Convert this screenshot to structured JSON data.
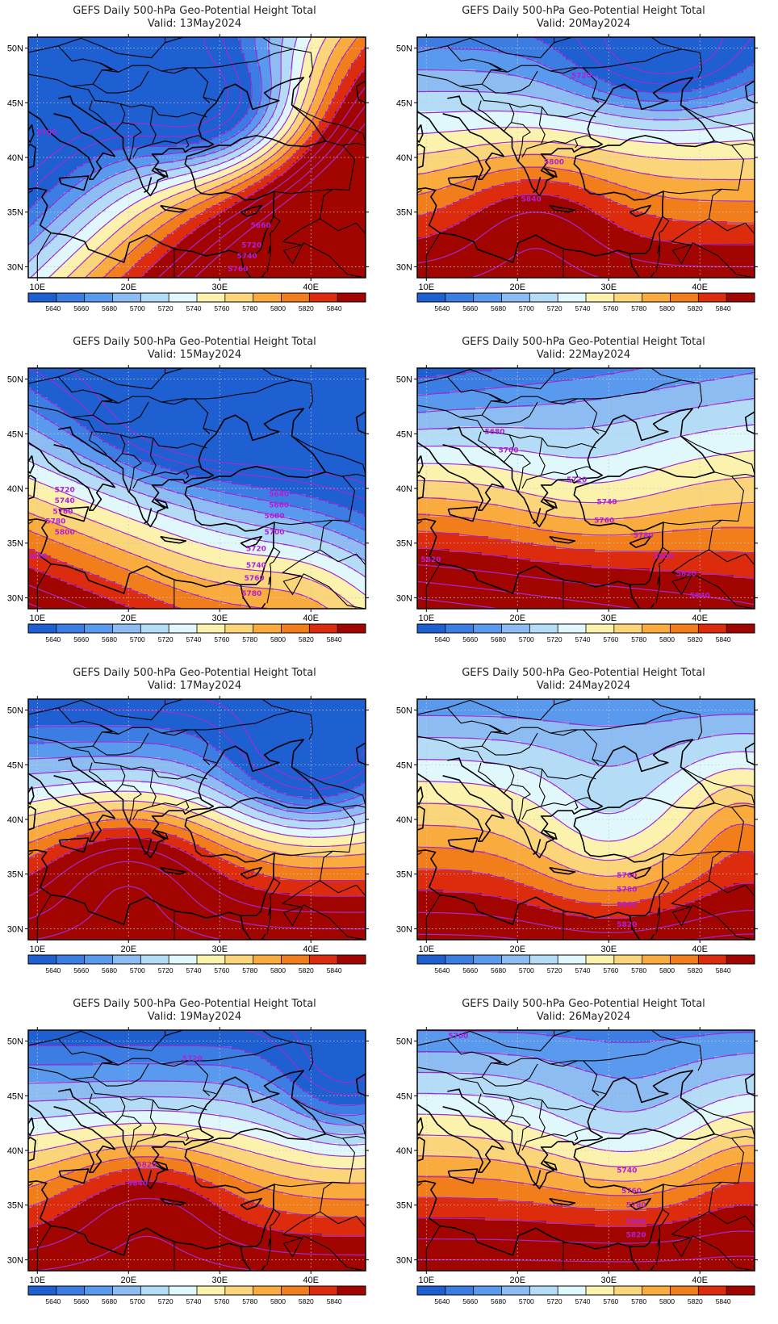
{
  "panels": [
    {
      "title": "GEFS Daily 500-hPa Geo-Potential Height Total",
      "valid": "Valid: 13May2024",
      "variant": 0,
      "contour_labels": [
        {
          "text": "5700",
          "lon": 11.0,
          "lat": 42.3
        },
        {
          "text": "5660",
          "lon": 34.5,
          "lat": 33.8
        },
        {
          "text": "5720",
          "lon": 33.5,
          "lat": 32.0
        },
        {
          "text": "5740",
          "lon": 33.0,
          "lat": 31.0
        },
        {
          "text": "5760",
          "lon": 32.0,
          "lat": 29.8
        }
      ]
    },
    {
      "title": "GEFS Daily 500-hPa Geo-Potential Height Total",
      "valid": "Valid: 20May2024",
      "variant": 1,
      "contour_labels": [
        {
          "text": "5720",
          "lon": 27.0,
          "lat": 47.5
        },
        {
          "text": "5800",
          "lon": 24.0,
          "lat": 39.6
        },
        {
          "text": "5840",
          "lon": 21.5,
          "lat": 36.2
        }
      ]
    },
    {
      "title": "GEFS Daily 500-hPa Geo-Potential Height Total",
      "valid": "Valid: 15May2024",
      "variant": 2,
      "contour_labels": [
        {
          "text": "5720",
          "lon": 13.0,
          "lat": 39.9
        },
        {
          "text": "5740",
          "lon": 13.0,
          "lat": 38.9
        },
        {
          "text": "5760",
          "lon": 12.8,
          "lat": 37.9
        },
        {
          "text": "5780",
          "lon": 12.0,
          "lat": 37.0
        },
        {
          "text": "5800",
          "lon": 13.0,
          "lat": 36.0
        },
        {
          "text": "5820",
          "lon": 10.0,
          "lat": 33.8
        },
        {
          "text": "5640",
          "lon": 36.5,
          "lat": 39.5
        },
        {
          "text": "5660",
          "lon": 36.5,
          "lat": 38.5
        },
        {
          "text": "5680",
          "lon": 36.0,
          "lat": 37.5
        },
        {
          "text": "5700",
          "lon": 36.0,
          "lat": 36.0
        },
        {
          "text": "5720",
          "lon": 34.0,
          "lat": 34.5
        },
        {
          "text": "5740",
          "lon": 34.0,
          "lat": 33.0
        },
        {
          "text": "5760",
          "lon": 33.8,
          "lat": 31.8
        },
        {
          "text": "5780",
          "lon": 33.5,
          "lat": 30.4
        }
      ]
    },
    {
      "title": "GEFS Daily 500-hPa Geo-Potential Height Total",
      "valid": "Valid: 22May2024",
      "variant": 3,
      "contour_labels": [
        {
          "text": "5680",
          "lon": 17.5,
          "lat": 45.2
        },
        {
          "text": "5700",
          "lon": 19.0,
          "lat": 43.5
        },
        {
          "text": "5720",
          "lon": 26.5,
          "lat": 40.8
        },
        {
          "text": "5740",
          "lon": 29.8,
          "lat": 38.8
        },
        {
          "text": "5760",
          "lon": 29.5,
          "lat": 37.1
        },
        {
          "text": "5780",
          "lon": 33.8,
          "lat": 35.7
        },
        {
          "text": "5800",
          "lon": 36.0,
          "lat": 33.8
        },
        {
          "text": "5820",
          "lon": 10.5,
          "lat": 33.5
        },
        {
          "text": "5820",
          "lon": 38.5,
          "lat": 32.2
        },
        {
          "text": "5840",
          "lon": 40.0,
          "lat": 30.2
        }
      ]
    },
    {
      "title": "GEFS Daily 500-hPa Geo-Potential Height Total",
      "valid": "Valid: 17May2024",
      "variant": 4,
      "contour_labels": []
    },
    {
      "title": "GEFS Daily 500-hPa Geo-Potential Height Total",
      "valid": "Valid: 24May2024",
      "variant": 5,
      "contour_labels": [
        {
          "text": "5760",
          "lon": 32.0,
          "lat": 34.9
        },
        {
          "text": "5780",
          "lon": 32.0,
          "lat": 33.6
        },
        {
          "text": "5800",
          "lon": 32.0,
          "lat": 32.2
        },
        {
          "text": "5820",
          "lon": 32.0,
          "lat": 30.4
        }
      ]
    },
    {
      "title": "GEFS Daily 500-hPa Geo-Potential Height Total",
      "valid": "Valid: 19May2024",
      "variant": 6,
      "contour_labels": [
        {
          "text": "5720",
          "lon": 27.0,
          "lat": 48.4
        },
        {
          "text": "5820",
          "lon": 22.0,
          "lat": 38.7
        },
        {
          "text": "5840",
          "lon": 21.0,
          "lat": 37.0
        }
      ]
    },
    {
      "title": "GEFS Daily 500-hPa Geo-Potential Height Total",
      "valid": "Valid: 26May2024",
      "variant": 7,
      "contour_labels": [
        {
          "text": "5700",
          "lon": 13.5,
          "lat": 50.5
        },
        {
          "text": "5740",
          "lon": 32.0,
          "lat": 38.2
        },
        {
          "text": "5760",
          "lon": 32.5,
          "lat": 36.3
        },
        {
          "text": "5780",
          "lon": 33.0,
          "lat": 35.0
        },
        {
          "text": "5800",
          "lon": 33.0,
          "lat": 33.5
        },
        {
          "text": "5820",
          "lon": 33.0,
          "lat": 32.3
        }
      ]
    }
  ],
  "map": {
    "lon_range": [
      9,
      46
    ],
    "lat_range": [
      29,
      51
    ],
    "lon_ticks": [
      {
        "v": 10,
        "label": "10E"
      },
      {
        "v": 20,
        "label": "20E"
      },
      {
        "v": 30,
        "label": "30E"
      },
      {
        "v": 40,
        "label": "40E"
      }
    ],
    "lat_ticks": [
      {
        "v": 30,
        "label": "30N"
      },
      {
        "v": 35,
        "label": "35N"
      },
      {
        "v": 40,
        "label": "40N"
      },
      {
        "v": 45,
        "label": "45N"
      },
      {
        "v": 50,
        "label": "50N"
      }
    ]
  },
  "legend": {
    "labels": [
      "5640",
      "5660",
      "5680",
      "5700",
      "5720",
      "5740",
      "5760",
      "5780",
      "5800",
      "5820",
      "5840"
    ],
    "colors": [
      "#1e5fd1",
      "#3c7de3",
      "#5a9aee",
      "#8dbcf2",
      "#b4dcf6",
      "#e0f8fb",
      "#fbf3ad",
      "#fad57a",
      "#f9ab3e",
      "#f17e1b",
      "#dd2b0e",
      "#a20500"
    ]
  },
  "colors": {
    "contour": "#a02bd2",
    "contour_label": "#b11fd8",
    "border": "#000000",
    "grid": "#c8c8c8"
  }
}
